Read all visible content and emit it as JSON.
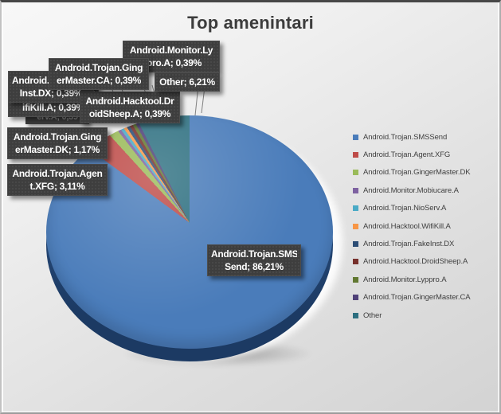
{
  "chart": {
    "title": "Top amenintari"
  },
  "chart_data": {
    "type": "pie",
    "style": "3d-pie",
    "title": "Top amenintari",
    "legend_position": "right",
    "values_unit": "percent",
    "series": [
      {
        "name": "Android.Trojan.SMSSend",
        "value": 86.21,
        "label": "Android.Trojan.SMSSend; 86,21%",
        "color": "#4a7cba"
      },
      {
        "name": "Android.Trojan.Agent.XFG",
        "value": 3.11,
        "label": "Android.Trojan.Agent.XFG; 3,11%",
        "color": "#be4b48"
      },
      {
        "name": "Android.Trojan.GingerMaster.DK",
        "value": 1.17,
        "label": "Android.Trojan.GingerMaster.DK; 1,17%",
        "color": "#9abb59"
      },
      {
        "name": "Android.Monitor.Mobiucare.A",
        "value": 0.39,
        "label": "Android.Monitor.Mobiucare.A; 0,39%",
        "color": "#7e62a1"
      },
      {
        "name": "Android.Trojan.NioServ.A",
        "value": 0.39,
        "label": "Android.Trojan.NioServ.A; 0,39%",
        "color": "#4aaac6"
      },
      {
        "name": "Android.Hacktool.WifiKill.A",
        "value": 0.39,
        "label": "Android.Hacktool.WifiKill.A; 0,39%",
        "color": "#f79646"
      },
      {
        "name": "Android.Trojan.FakeInst.DX",
        "value": 0.39,
        "label": "Android.Trojan.FakeInst.DX; 0,39%",
        "color": "#2c4d75"
      },
      {
        "name": "Android.Hacktool.DroidSheep.A",
        "value": 0.39,
        "label": "Android.Hacktool.DroidSheep.A; 0,39%",
        "color": "#77302c"
      },
      {
        "name": "Android.Monitor.Lyppro.A",
        "value": 0.39,
        "label": "Android.Monitor.Lyppro.A; 0,39%",
        "color": "#617831"
      },
      {
        "name": "Android.Trojan.GingerMaster.CA",
        "value": 0.39,
        "label": "Android.Trojan.GingerMaster.CA; 0,39%",
        "color": "#4f4178"
      },
      {
        "name": "Other",
        "value": 6.21,
        "label": "Other; 6,21%",
        "color": "#2d6f80"
      }
    ]
  },
  "data_labels": {
    "lyppro": {
      "line1": "Android.Monitor.Ly",
      "line2": "ppro.A; 0,39%"
    },
    "gingermaster_ca": {
      "line1": "Android.Trojan.Ging",
      "line2": "erMaster.CA; 0,39%"
    },
    "fakeinst": {
      "line1": "Android.Trojan.Fake",
      "line2": "Inst.DX; 0,39%"
    },
    "other": {
      "line1": "Other; 6,21%"
    },
    "wifikill": {
      "line1": "Android.Hacktool.W",
      "line2": "ifiKill.A; 0,39%"
    },
    "droidsheep": {
      "line1": "Android.Hacktool.Dr",
      "line2": "oidSheep.A; 0,39%"
    },
    "gingermaster_dk": {
      "line1": "Android.Trojan.Ging",
      "line2": "erMaster.DK; 1,17%"
    },
    "agent_xfg": {
      "line1": "Android.Trojan.Agen",
      "line2": "t.XFG; 3,11%"
    },
    "smssend": {
      "line1": "Android.Trojan.SMS",
      "line2": "Send; 86,21%"
    },
    "ghost_fragment": "erv.A; 0,39"
  }
}
